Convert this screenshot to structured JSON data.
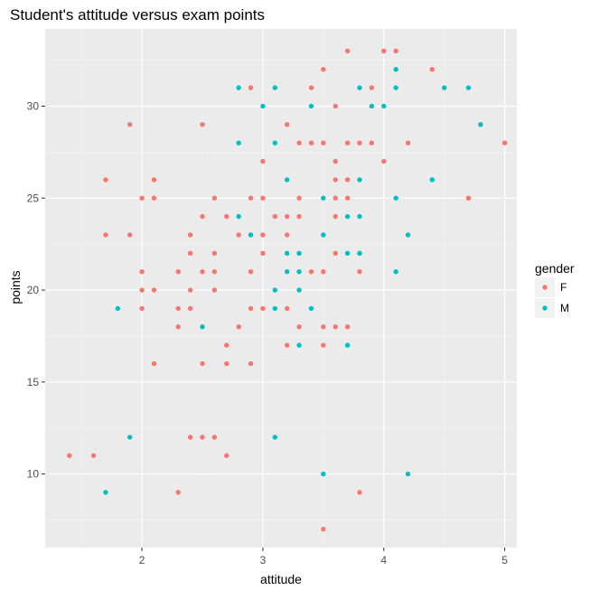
{
  "chart_data": {
    "type": "scatter",
    "title": "Student's attitude versus exam points",
    "xlabel": "attitude",
    "ylabel": "points",
    "xlim": [
      1.2,
      5.1
    ],
    "ylim": [
      6.0,
      34.2
    ],
    "x_ticks": [
      2,
      3,
      4,
      5
    ],
    "y_ticks": [
      10,
      15,
      20,
      25,
      30
    ],
    "x_tick_labels": [
      "2",
      "3",
      "4",
      "5"
    ],
    "y_tick_labels": [
      "10",
      "15",
      "20",
      "25",
      "30"
    ],
    "grid": true,
    "legend": {
      "title": "gender",
      "position": "right"
    },
    "series": [
      {
        "name": "F",
        "color": "#F8766D",
        "points": [
          [
            3.7,
            33
          ],
          [
            4.0,
            33
          ],
          [
            4.1,
            33
          ],
          [
            3.5,
            32
          ],
          [
            4.4,
            32
          ],
          [
            2.9,
            31
          ],
          [
            3.4,
            31
          ],
          [
            3.9,
            31
          ],
          [
            3.6,
            30
          ],
          [
            1.9,
            29
          ],
          [
            2.5,
            29
          ],
          [
            3.2,
            29
          ],
          [
            3.3,
            28
          ],
          [
            3.4,
            28
          ],
          [
            3.5,
            28
          ],
          [
            3.7,
            28
          ],
          [
            3.8,
            28
          ],
          [
            3.9,
            28
          ],
          [
            4.2,
            28
          ],
          [
            5.0,
            28
          ],
          [
            3.0,
            27
          ],
          [
            3.6,
            27
          ],
          [
            4.0,
            27
          ],
          [
            1.7,
            26
          ],
          [
            2.1,
            26
          ],
          [
            3.6,
            26
          ],
          [
            3.7,
            26
          ],
          [
            2.0,
            25
          ],
          [
            2.1,
            25
          ],
          [
            2.6,
            25
          ],
          [
            2.9,
            25
          ],
          [
            3.0,
            25
          ],
          [
            3.3,
            25
          ],
          [
            3.6,
            25
          ],
          [
            3.7,
            25
          ],
          [
            4.7,
            25
          ],
          [
            2.5,
            24
          ],
          [
            2.7,
            24
          ],
          [
            3.1,
            24
          ],
          [
            3.2,
            24
          ],
          [
            3.3,
            24
          ],
          [
            3.6,
            24
          ],
          [
            1.7,
            23
          ],
          [
            1.9,
            23
          ],
          [
            2.4,
            23
          ],
          [
            2.8,
            23
          ],
          [
            3.0,
            23
          ],
          [
            3.2,
            23
          ],
          [
            2.4,
            22
          ],
          [
            2.6,
            22
          ],
          [
            3.0,
            22
          ],
          [
            3.6,
            22
          ],
          [
            3.8,
            22
          ],
          [
            2.0,
            21
          ],
          [
            2.3,
            21
          ],
          [
            2.5,
            21
          ],
          [
            2.6,
            21
          ],
          [
            2.9,
            21
          ],
          [
            3.4,
            21
          ],
          [
            3.5,
            21
          ],
          [
            3.8,
            21
          ],
          [
            2.0,
            20
          ],
          [
            2.1,
            20
          ],
          [
            2.4,
            20
          ],
          [
            2.6,
            20
          ],
          [
            2.0,
            19
          ],
          [
            2.3,
            19
          ],
          [
            2.4,
            19
          ],
          [
            2.9,
            19
          ],
          [
            3.0,
            19
          ],
          [
            3.2,
            19
          ],
          [
            2.3,
            18
          ],
          [
            2.8,
            18
          ],
          [
            3.3,
            18
          ],
          [
            3.5,
            18
          ],
          [
            3.6,
            18
          ],
          [
            3.7,
            18
          ],
          [
            2.7,
            17
          ],
          [
            3.2,
            17
          ],
          [
            3.5,
            17
          ],
          [
            2.1,
            16
          ],
          [
            2.5,
            16
          ],
          [
            2.7,
            16
          ],
          [
            2.9,
            16
          ],
          [
            2.4,
            12
          ],
          [
            2.5,
            12
          ],
          [
            2.6,
            12
          ],
          [
            1.4,
            11
          ],
          [
            1.6,
            11
          ],
          [
            2.7,
            11
          ],
          [
            2.3,
            9
          ],
          [
            3.8,
            9
          ],
          [
            3.5,
            7
          ]
        ]
      },
      {
        "name": "M",
        "color": "#00BFC4",
        "points": [
          [
            4.1,
            32
          ],
          [
            2.8,
            31
          ],
          [
            3.1,
            31
          ],
          [
            3.8,
            31
          ],
          [
            4.1,
            31
          ],
          [
            4.5,
            31
          ],
          [
            4.7,
            31
          ],
          [
            3.0,
            30
          ],
          [
            3.4,
            30
          ],
          [
            3.9,
            30
          ],
          [
            4.0,
            30
          ],
          [
            4.8,
            29
          ],
          [
            2.8,
            28
          ],
          [
            3.1,
            28
          ],
          [
            3.2,
            26
          ],
          [
            3.8,
            26
          ],
          [
            4.4,
            26
          ],
          [
            3.5,
            25
          ],
          [
            4.1,
            25
          ],
          [
            2.8,
            24
          ],
          [
            3.7,
            24
          ],
          [
            3.8,
            24
          ],
          [
            2.9,
            23
          ],
          [
            3.5,
            23
          ],
          [
            4.2,
            23
          ],
          [
            3.2,
            22
          ],
          [
            3.3,
            22
          ],
          [
            3.7,
            22
          ],
          [
            3.8,
            22
          ],
          [
            3.2,
            21
          ],
          [
            3.3,
            21
          ],
          [
            4.1,
            21
          ],
          [
            3.1,
            20
          ],
          [
            3.3,
            20
          ],
          [
            1.8,
            19
          ],
          [
            3.1,
            19
          ],
          [
            3.4,
            19
          ],
          [
            2.5,
            18
          ],
          [
            3.3,
            17
          ],
          [
            3.7,
            17
          ],
          [
            1.9,
            12
          ],
          [
            3.1,
            12
          ],
          [
            3.5,
            10
          ],
          [
            4.2,
            10
          ],
          [
            1.7,
            9
          ]
        ]
      }
    ]
  }
}
